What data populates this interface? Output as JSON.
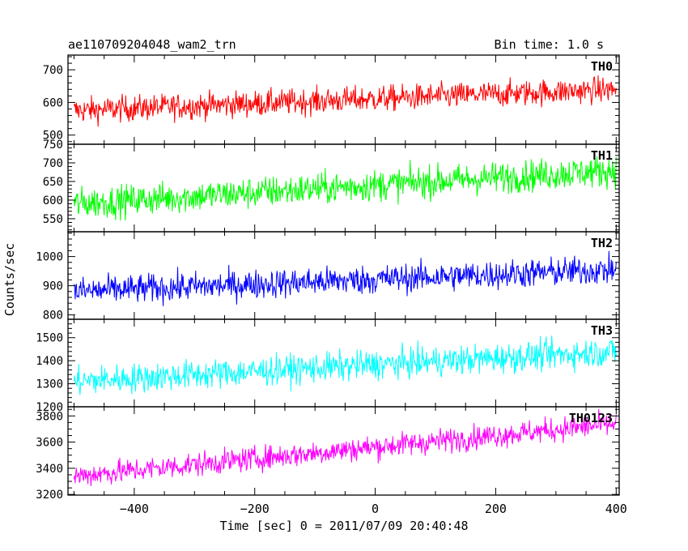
{
  "chart_data": {
    "type": "line",
    "title": "ae110709204048_wam2_trn",
    "subtitle": "Bin time: 1.0 s",
    "xlabel": "Time [sec] 0 = 2011/07/09 20:40:48",
    "ylabel": "Counts/sec",
    "xlim": [
      -510,
      405
    ],
    "x_ticks": [
      -400,
      -200,
      0,
      200,
      400
    ],
    "x_tick_labels": [
      "−400",
      "−200",
      "0",
      "200",
      "400"
    ],
    "bin_time_s": 1.0,
    "data_x_range": [
      -500,
      400
    ],
    "grid": false,
    "panels": [
      {
        "name": "TH0",
        "color": "#ff0000",
        "ylim": [
          472,
          745
        ],
        "yticks": [
          500,
          600,
          700
        ],
        "trend_start": 575,
        "trend_end": 640,
        "noise": 28
      },
      {
        "name": "TH1",
        "color": "#00ff00",
        "ylim": [
          515,
          750
        ],
        "yticks": [
          550,
          600,
          650,
          700,
          750
        ],
        "trend_start": 590,
        "trend_end": 680,
        "noise": 30
      },
      {
        "name": "TH2",
        "color": "#0000ff",
        "ylim": [
          785,
          1085
        ],
        "yticks": [
          800,
          900,
          1000
        ],
        "trend_start": 880,
        "trend_end": 955,
        "noise": 35
      },
      {
        "name": "TH3",
        "color": "#00ffff",
        "ylim": [
          1200,
          1580
        ],
        "yticks": [
          1200,
          1300,
          1400,
          1500
        ],
        "trend_start": 1310,
        "trend_end": 1440,
        "noise": 45
      },
      {
        "name": "TH0123",
        "color": "#ff00ff",
        "ylim": [
          3195,
          3870
        ],
        "yticks": [
          3200,
          3400,
          3600,
          3800
        ],
        "trend_start": 3340,
        "trend_end": 3740,
        "noise": 65
      }
    ]
  }
}
